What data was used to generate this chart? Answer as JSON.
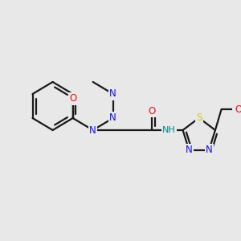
{
  "background_color": "#e8e8e8",
  "bond_color": "#1a1a1a",
  "figsize": [
    3.0,
    3.0
  ],
  "dpi": 100,
  "colors": {
    "N": "#1010ee",
    "O": "#ee1010",
    "S": "#cccc00",
    "C": "#1a1a1a",
    "NH": "#008888"
  },
  "font_size": 8.5,
  "lw": 1.6
}
